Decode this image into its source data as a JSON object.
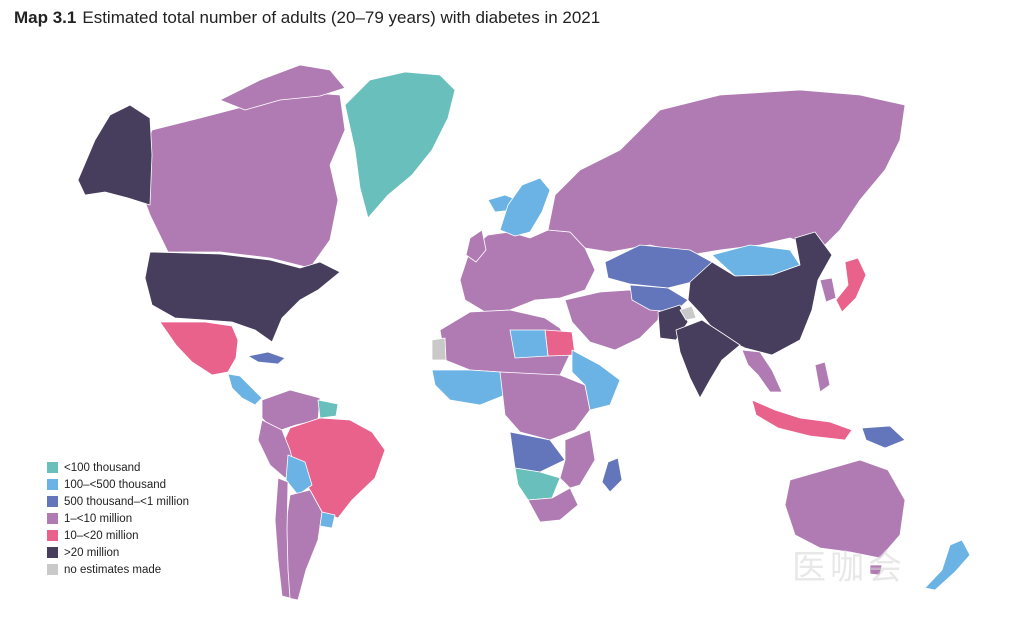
{
  "title": {
    "tag": "Map 3.1",
    "text": "Estimated total number of adults (20–79 years) with diabetes in 2021"
  },
  "colors": {
    "lt100k": "#68bfbb",
    "k100_500": "#6ab3e4",
    "k500_1m": "#6476bb",
    "m1_10": "#b07bb3",
    "m10_20": "#e8628c",
    "gt20m": "#473d5c",
    "none": "#c9c9c9"
  },
  "legend": [
    {
      "label": "<100 thousand",
      "color": "#68bfbb"
    },
    {
      "label": "100–<500 thousand",
      "color": "#6ab3e4"
    },
    {
      "label": "500 thousand–<1 million",
      "color": "#6476bb"
    },
    {
      "label": "1–<10 million",
      "color": "#b07bb3"
    },
    {
      "label": "10–<20 million",
      "color": "#e8628c"
    },
    {
      "label": ">20 million",
      "color": "#473d5c"
    },
    {
      "label": "no estimates made",
      "color": "#c9c9c9"
    }
  ],
  "watermark": "医咖会"
}
